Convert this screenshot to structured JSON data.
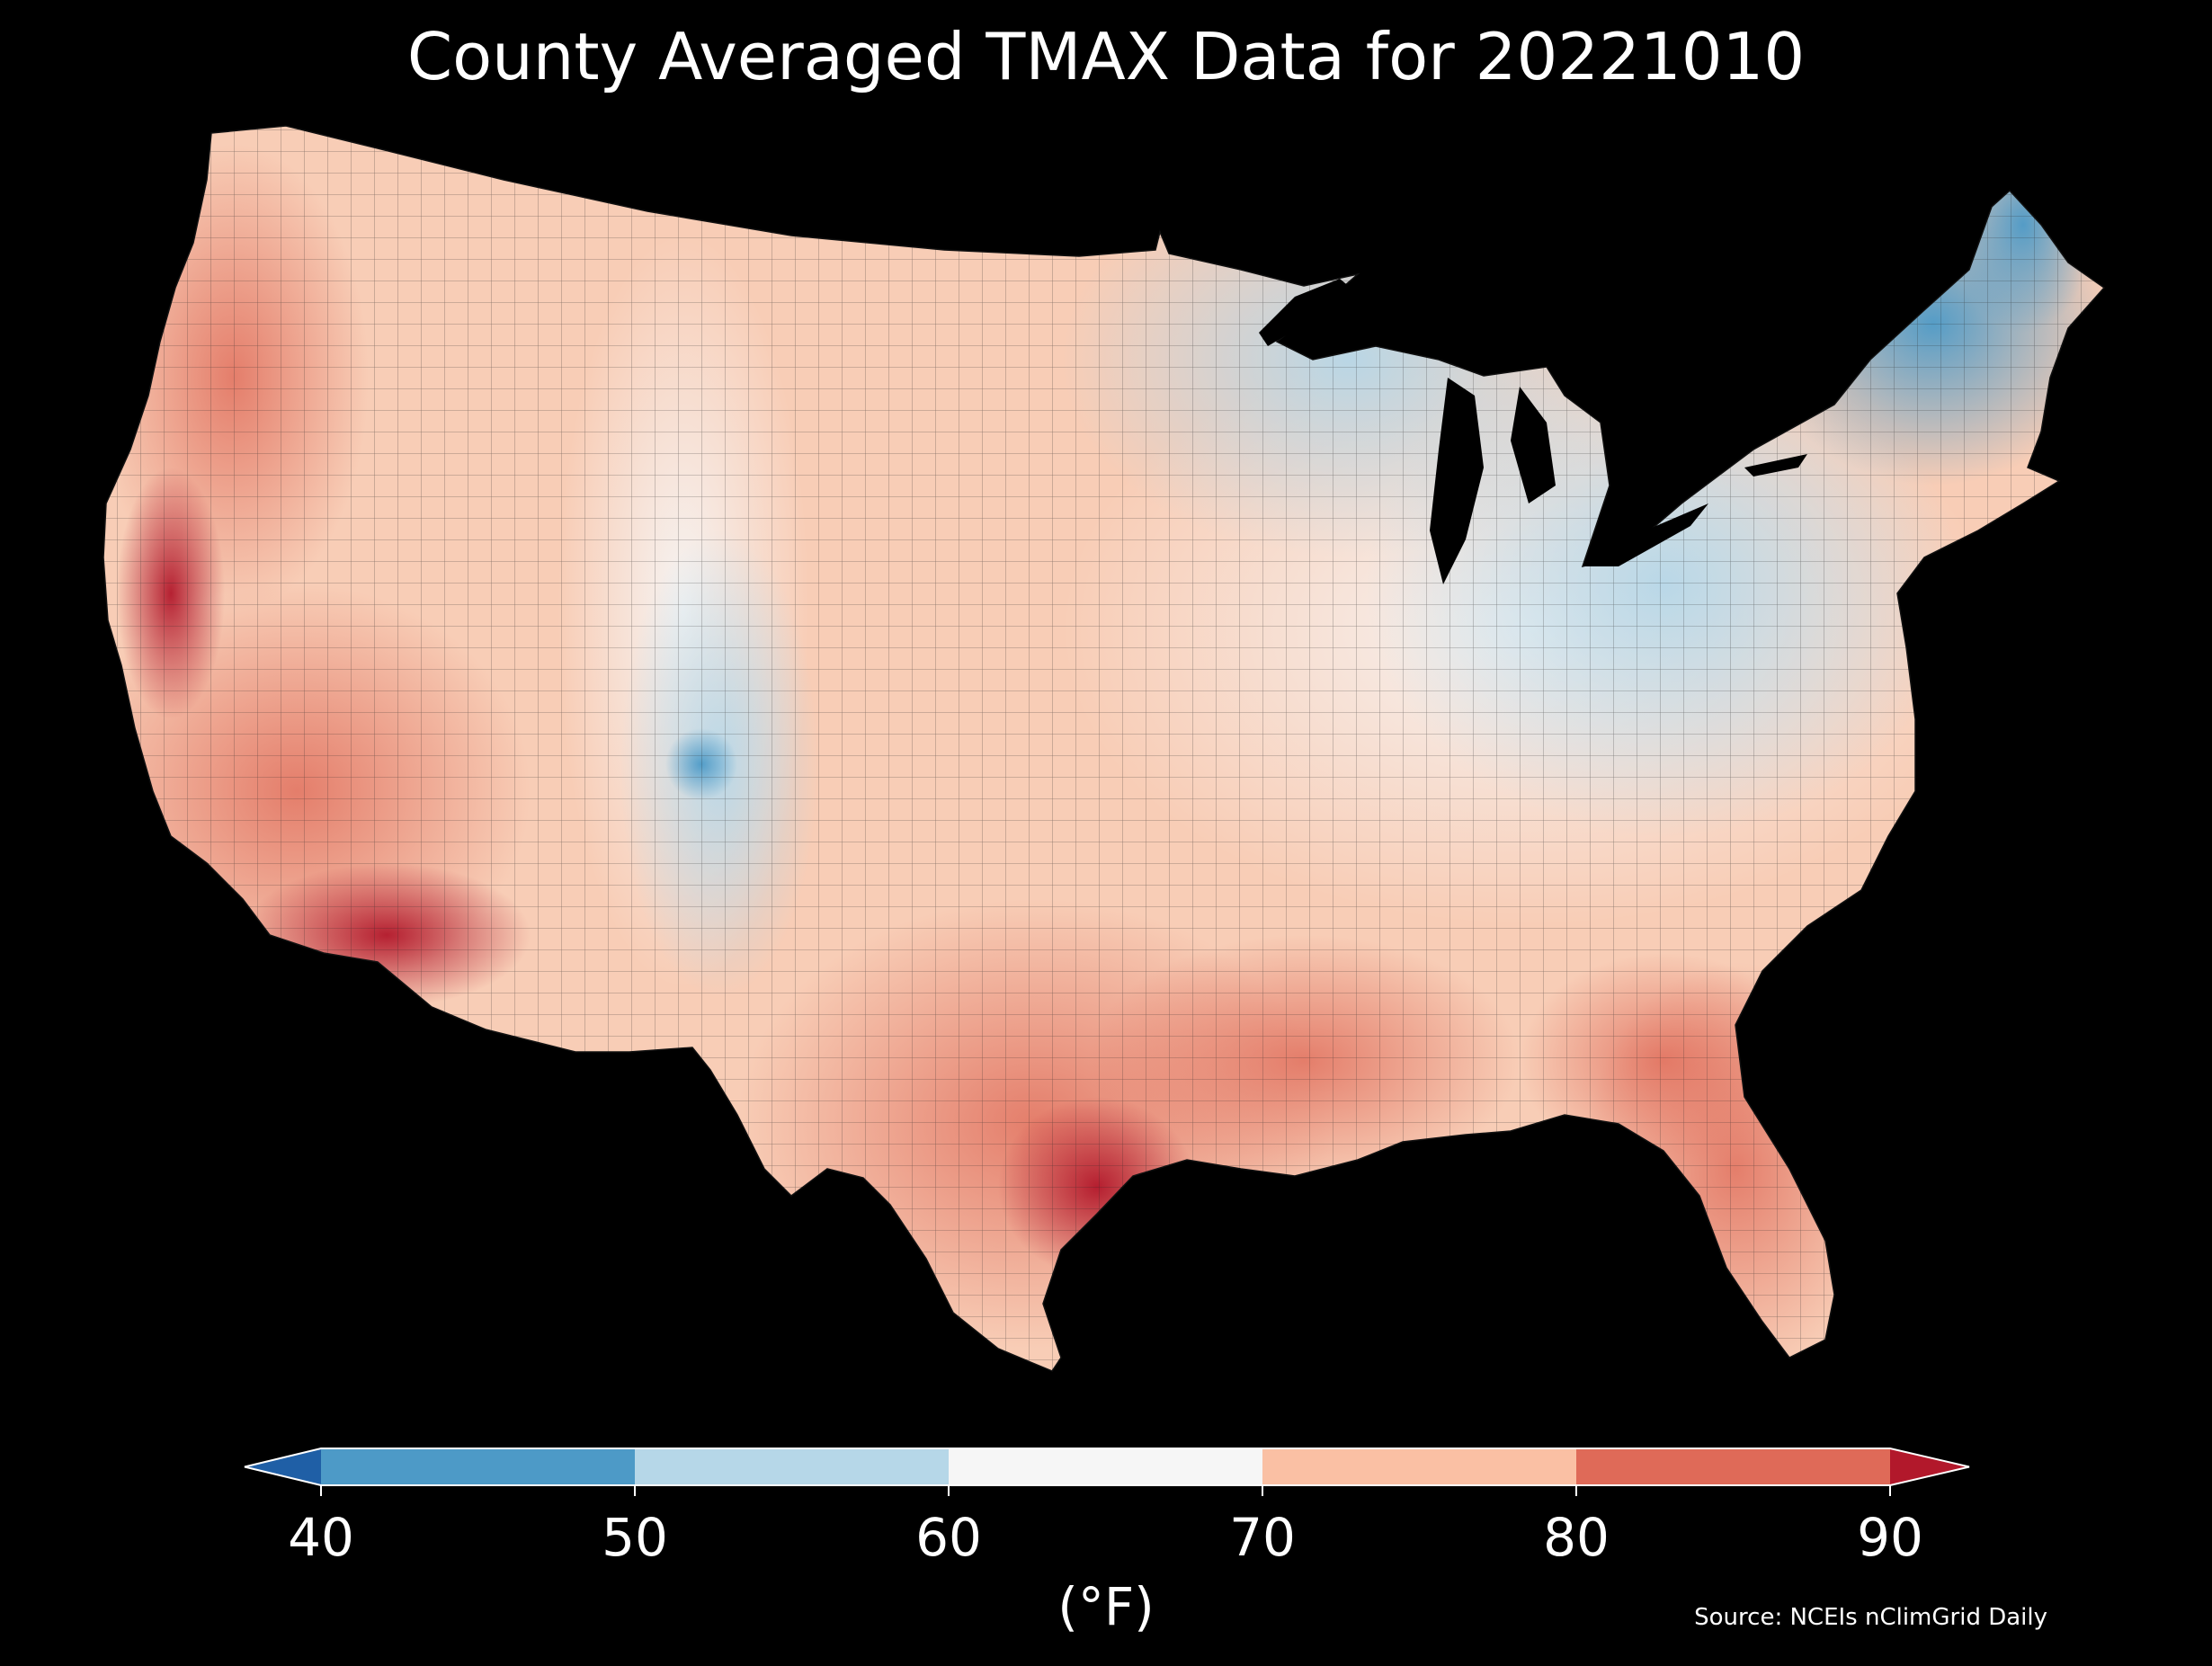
{
  "title": "County Averaged TMAX Data for 20221010",
  "colorbar": {
    "ticks": [
      "40",
      "50",
      "60",
      "70",
      "80",
      "90"
    ],
    "unit": "(°F)",
    "under_color": "#1f5fa6",
    "over_color": "#b2182b",
    "bins": [
      {
        "from": 40,
        "to": 50,
        "color": "#4d9ac7"
      },
      {
        "from": 50,
        "to": 60,
        "color": "#b6d7e8"
      },
      {
        "from": 60,
        "to": 70,
        "color": "#f6f6f6"
      },
      {
        "from": 70,
        "to": 80,
        "color": "#fac0a4"
      },
      {
        "from": 80,
        "to": 90,
        "color": "#df6a58"
      }
    ]
  },
  "source": "Source: NCEIs nClimGrid Daily",
  "colors": {
    "background": "#000000",
    "text": "#ffffff",
    "water": "#000000",
    "county_border": "#222222"
  }
}
